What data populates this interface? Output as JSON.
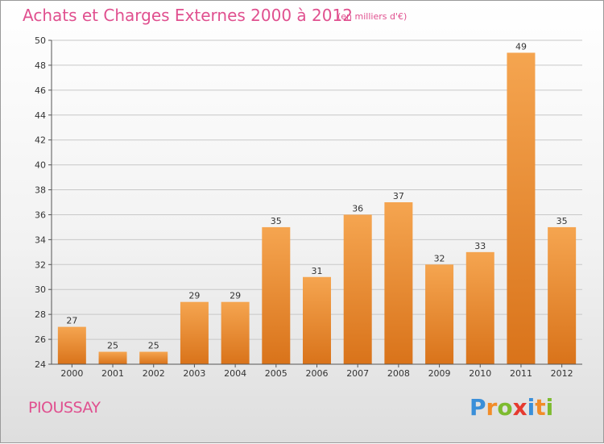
{
  "header": {
    "title": "Achats et Charges Externes 2000 à 2012",
    "unit": "(en milliers d'€)"
  },
  "footer": {
    "commune": "PIOUSSAY",
    "logo_letters": [
      "P",
      "r",
      "o",
      "x",
      "i",
      "t",
      "i"
    ],
    "logo_colors": [
      "#3a8fd9",
      "#f28c28",
      "#7dbb2f",
      "#e63a2f",
      "#3a8fd9",
      "#f28c28",
      "#7dbb2f"
    ]
  },
  "colors": {
    "title": "#e0508f",
    "bar_light": "#f5a550",
    "bar_dark": "#d9731a",
    "grid": "#c8c8c8"
  },
  "chart_data": {
    "type": "bar",
    "title": "Achats et Charges Externes 2000 à 2012",
    "subtitle": "(en milliers d'€)",
    "xlabel": "",
    "ylabel": "",
    "categories": [
      "2000",
      "2001",
      "2002",
      "2003",
      "2004",
      "2005",
      "2006",
      "2007",
      "2008",
      "2009",
      "2010",
      "2011",
      "2012"
    ],
    "values": [
      27,
      25,
      25,
      29,
      29,
      35,
      31,
      36,
      37,
      32,
      33,
      49,
      35
    ],
    "ylim": [
      24,
      50
    ],
    "yticks": [
      24,
      26,
      28,
      30,
      32,
      34,
      36,
      38,
      40,
      42,
      44,
      46,
      48,
      50
    ],
    "grid": true,
    "legend": "none"
  }
}
